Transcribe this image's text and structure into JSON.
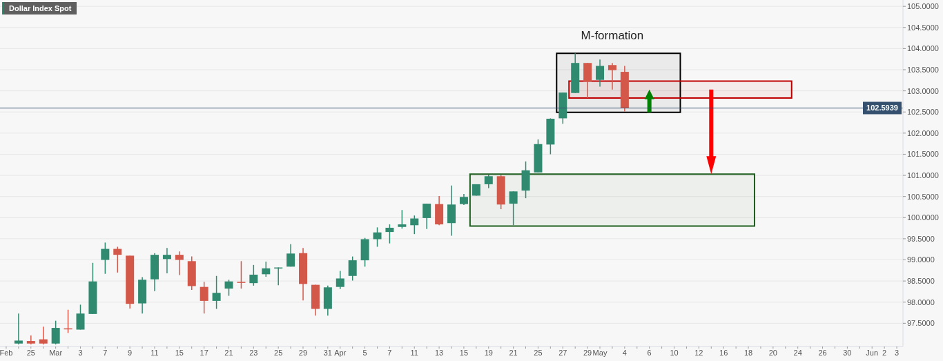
{
  "chart_data": {
    "type": "candlestick",
    "title": "Dollar Index Spot",
    "categories": [
      "Feb",
      null,
      "25",
      null,
      "Mar",
      null,
      "3",
      null,
      "7",
      null,
      "9",
      null,
      "11",
      null,
      "15",
      null,
      "17",
      null,
      "21",
      null,
      "23",
      null,
      "25",
      null,
      "29",
      null,
      "31",
      "Apr",
      null,
      "5",
      null,
      "7",
      null,
      "11",
      null,
      "13",
      null,
      "15",
      null,
      "19",
      null,
      "21",
      null,
      "25",
      null,
      "27",
      null,
      "29",
      "May",
      null,
      "4",
      null,
      "6",
      null,
      "10",
      null,
      "12",
      null,
      "16",
      null,
      "18",
      null,
      "20",
      null,
      "24",
      null,
      "26",
      null,
      "30",
      null,
      "Jun",
      "2",
      "3"
    ],
    "ohlc": [
      null,
      [
        97.02,
        97.73,
        97.0,
        97.09
      ],
      [
        97.08,
        97.21,
        97.0,
        97.02
      ],
      [
        97.12,
        97.42,
        97.0,
        97.02
      ],
      [
        97.02,
        97.56,
        97.0,
        97.39
      ],
      [
        97.38,
        97.82,
        97.27,
        97.36
      ],
      [
        97.35,
        97.94,
        97.35,
        97.73
      ],
      [
        97.72,
        98.93,
        97.72,
        98.49
      ],
      [
        99.0,
        99.41,
        98.67,
        99.26
      ],
      [
        99.26,
        99.31,
        98.7,
        99.12
      ],
      [
        99.1,
        99.1,
        97.85,
        97.96
      ],
      [
        97.97,
        98.59,
        97.73,
        98.53
      ],
      [
        98.54,
        99.16,
        98.26,
        99.12
      ],
      [
        99.02,
        99.28,
        98.68,
        99.12
      ],
      [
        99.12,
        99.2,
        98.64,
        99.0
      ],
      [
        98.97,
        99.08,
        98.29,
        98.38
      ],
      [
        98.36,
        98.48,
        97.73,
        98.03
      ],
      [
        98.03,
        98.62,
        97.84,
        98.22
      ],
      [
        98.32,
        98.53,
        98.15,
        98.49
      ],
      [
        98.48,
        98.97,
        98.32,
        98.46
      ],
      [
        98.45,
        98.88,
        98.39,
        98.65
      ],
      [
        98.66,
        98.96,
        98.6,
        98.8
      ],
      [
        98.8,
        98.82,
        98.4,
        98.82
      ],
      [
        98.84,
        99.37,
        98.84,
        99.15
      ],
      [
        99.16,
        99.28,
        98.04,
        98.43
      ],
      [
        98.41,
        98.41,
        97.68,
        97.84
      ],
      [
        97.84,
        98.39,
        97.68,
        98.35
      ],
      [
        98.36,
        98.74,
        98.31,
        98.56
      ],
      [
        98.62,
        99.08,
        98.51,
        98.99
      ],
      [
        98.99,
        99.52,
        98.84,
        99.49
      ],
      [
        99.49,
        99.77,
        99.31,
        99.65
      ],
      [
        99.66,
        99.84,
        99.39,
        99.76
      ],
      [
        99.78,
        100.18,
        99.74,
        99.84
      ],
      [
        99.82,
        100.05,
        99.61,
        99.98
      ],
      [
        99.99,
        100.33,
        99.73,
        100.33
      ],
      [
        100.32,
        100.51,
        99.82,
        99.84
      ],
      [
        99.87,
        100.76,
        99.57,
        100.31
      ],
      [
        100.32,
        100.56,
        100.3,
        100.49
      ],
      [
        100.52,
        100.79,
        100.52,
        100.79
      ],
      [
        100.79,
        101.02,
        100.7,
        100.98
      ],
      [
        100.98,
        101.01,
        100.2,
        100.31
      ],
      [
        100.33,
        100.62,
        99.82,
        100.62
      ],
      [
        100.64,
        101.33,
        100.46,
        101.12
      ],
      [
        101.07,
        101.85,
        101.07,
        101.74
      ],
      [
        101.73,
        102.35,
        101.5,
        102.34
      ],
      [
        102.35,
        102.96,
        102.22,
        102.96
      ],
      [
        102.95,
        103.89,
        102.95,
        103.66
      ],
      [
        103.66,
        103.66,
        102.83,
        103.22
      ],
      [
        103.26,
        103.74,
        103.1,
        103.59
      ],
      [
        103.61,
        103.66,
        103.03,
        103.49
      ],
      [
        103.45,
        103.59,
        102.51,
        102.59
      ],
      null,
      null,
      null,
      null,
      null,
      null,
      null,
      null,
      null,
      null,
      null,
      null,
      null,
      null,
      null,
      null,
      null,
      null,
      null,
      null,
      null,
      null
    ],
    "colors": [
      null,
      "#2f8a70",
      "#d4584a",
      "#d4584a",
      "#2f8a70",
      "#d4584a",
      "#2f8a70",
      "#2f8a70",
      "#2f8a70",
      "#d4584a",
      "#d4584a",
      "#2f8a70",
      "#2f8a70",
      "#2f8a70",
      "#d4584a",
      "#d4584a",
      "#d4584a",
      "#2f8a70",
      "#2f8a70",
      "#d4584a",
      "#2f8a70",
      "#2f8a70",
      "#2f8a70",
      "#2f8a70",
      "#d4584a",
      "#d4584a",
      "#2f8a70",
      "#2f8a70",
      "#2f8a70",
      "#2f8a70",
      "#2f8a70",
      "#2f8a70",
      "#2f8a70",
      "#2f8a70",
      "#2f8a70",
      "#d4584a",
      "#2f8a70",
      "#2f8a70",
      "#2f8a70",
      "#2f8a70",
      "#d4584a",
      "#2f8a70",
      "#2f8a70",
      "#2f8a70",
      "#2f8a70",
      "#2f8a70",
      "#2f8a70",
      "#d4584a",
      "#2f8a70",
      "#d4584a",
      "#d4584a",
      null,
      null,
      null,
      null,
      null,
      null,
      null,
      null,
      null,
      null,
      null,
      null,
      null,
      null,
      null,
      null,
      null,
      null,
      null,
      null,
      null,
      null
    ],
    "ylim": [
      96.95,
      105.15
    ],
    "yticks": [
      {
        "value": 97.5,
        "label": "97.5000"
      },
      {
        "value": 98,
        "label": "98.0000"
      },
      {
        "value": 98.5,
        "label": "98.5000"
      },
      {
        "value": 99,
        "label": "99.0000"
      },
      {
        "value": 99.5,
        "label": "99.5000"
      },
      {
        "value": 100,
        "label": "100.0000"
      },
      {
        "value": 100.5,
        "label": "100.5000"
      },
      {
        "value": 101,
        "label": "101.0000"
      },
      {
        "value": 101.5,
        "label": "101.5000"
      },
      {
        "value": 102,
        "label": "102.0000"
      },
      {
        "value": 102.5,
        "label": "102.5000"
      },
      {
        "value": 103,
        "label": "103.0000"
      },
      {
        "value": 103.5,
        "label": "103.5000"
      },
      {
        "value": 104,
        "label": "104.0000"
      },
      {
        "value": 104.5,
        "label": "104.5000"
      },
      {
        "value": 105,
        "label": "105.0000"
      }
    ],
    "grid": "y",
    "ref_lines": [
      {
        "axis": "y",
        "value": 102.5939,
        "label": "102.5939",
        "color": "#34506e"
      }
    ],
    "bands": [
      {
        "axis": "y",
        "from": 102.49,
        "to": 103.89,
        "color": "#000000"
      },
      {
        "axis": "y",
        "from": 102.83,
        "to": 103.23,
        "color": "#c00000"
      },
      {
        "axis": "y",
        "from": 99.8,
        "to": 101.03,
        "color": "#1e5e1e"
      }
    ],
    "annotations": [
      "M-formation"
    ]
  }
}
